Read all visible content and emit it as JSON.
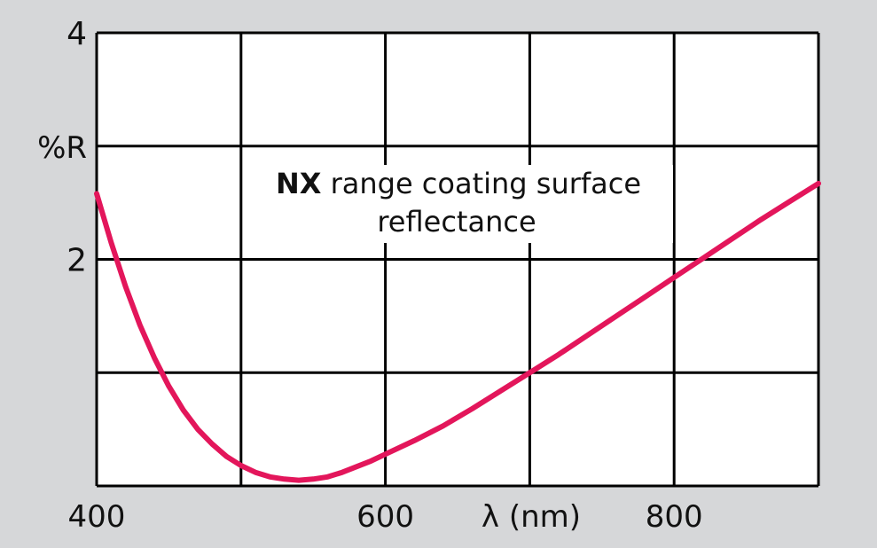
{
  "chart_data": {
    "type": "line",
    "title_bold": "NX",
    "title_rest": " range coating surface",
    "title_line2": "reflectance",
    "xlabel": "λ (nm)",
    "ylabel": "%R",
    "xlim": [
      400,
      900
    ],
    "ylim": [
      0,
      4
    ],
    "x_gridlines": [
      400,
      500,
      600,
      700,
      800,
      900
    ],
    "y_gridlines": [
      0,
      1,
      2,
      3,
      4
    ],
    "x_ticks": [
      {
        "value": 400,
        "label": "400"
      },
      {
        "value": 600,
        "label": "600"
      },
      {
        "value": 800,
        "label": "800"
      }
    ],
    "y_ticks": [
      {
        "value": 4,
        "label": "4"
      },
      {
        "value": 2,
        "label": "2"
      }
    ],
    "grid": true,
    "line_color": "#e3165b",
    "background": "#d6d7d9",
    "plot_background": "#ffffff",
    "series": [
      {
        "x": [
          400,
          410,
          420,
          430,
          440,
          450,
          460,
          470,
          480,
          490,
          500,
          510,
          520,
          530,
          540,
          550,
          560,
          570,
          580,
          590,
          600,
          620,
          640,
          660,
          680,
          700,
          720,
          740,
          760,
          780,
          800,
          820,
          840,
          860,
          880,
          900
        ],
        "y": [
          2.58,
          2.15,
          1.76,
          1.42,
          1.13,
          0.88,
          0.67,
          0.5,
          0.37,
          0.26,
          0.18,
          0.12,
          0.08,
          0.06,
          0.05,
          0.06,
          0.08,
          0.12,
          0.17,
          0.22,
          0.28,
          0.4,
          0.53,
          0.68,
          0.84,
          1.0,
          1.16,
          1.33,
          1.5,
          1.67,
          1.84,
          2.01,
          2.18,
          2.35,
          2.51,
          2.67
        ]
      }
    ]
  }
}
